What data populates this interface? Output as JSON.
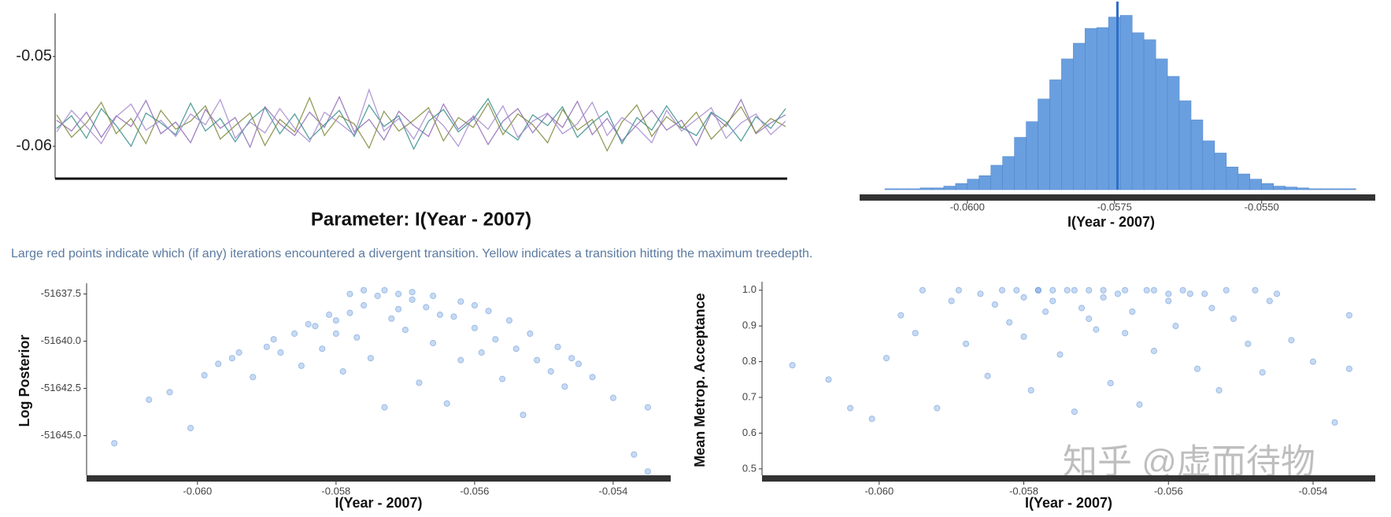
{
  "chart_data": [
    {
      "type": "line",
      "title": "Parameter: I(Year - 2007)",
      "ylim": [
        -0.0636,
        -0.0452
      ],
      "yticks": [
        -0.05,
        -0.06
      ],
      "series": [
        {
          "color": "#8e6bb5",
          "values": [
            -0.0571,
            -0.0583,
            -0.0562,
            -0.059,
            -0.0566,
            -0.0578,
            -0.0549,
            -0.0586,
            -0.0573,
            -0.0596,
            -0.0559,
            -0.058,
            -0.0568,
            -0.0601,
            -0.0556,
            -0.0575,
            -0.0588,
            -0.0562,
            -0.0579,
            -0.0545,
            -0.0584,
            -0.057,
            -0.0593,
            -0.0561,
            -0.0577,
            -0.0589,
            -0.0553,
            -0.0581,
            -0.0567,
            -0.0598,
            -0.0572,
            -0.0558,
            -0.0585,
            -0.0564,
            -0.0579,
            -0.055,
            -0.0587,
            -0.0569,
            -0.0594,
            -0.0576,
            -0.056,
            -0.0582,
            -0.0571,
            -0.0599,
            -0.0563,
            -0.0578,
            -0.0548,
            -0.0586,
            -0.0574,
            -0.0565
          ]
        },
        {
          "color": "#3a8f8c",
          "values": [
            -0.058,
            -0.0566,
            -0.0591,
            -0.0558,
            -0.0577,
            -0.06,
            -0.0563,
            -0.0574,
            -0.0587,
            -0.0552,
            -0.0583,
            -0.0569,
            -0.0595,
            -0.0571,
            -0.0557,
            -0.0586,
            -0.0564,
            -0.0592,
            -0.0576,
            -0.056,
            -0.0589,
            -0.0554,
            -0.0578,
            -0.0566,
            -0.0603,
            -0.0572,
            -0.0559,
            -0.0584,
            -0.057,
            -0.0547,
            -0.0581,
            -0.0593,
            -0.0565,
            -0.0577,
            -0.0556,
            -0.059,
            -0.0574,
            -0.0561,
            -0.0597,
            -0.0568,
            -0.0582,
            -0.0555,
            -0.0579,
            -0.0588,
            -0.0562,
            -0.0573,
            -0.0594,
            -0.0567,
            -0.058,
            -0.0558
          ]
        },
        {
          "color": "#7f8a3c",
          "values": [
            -0.0565,
            -0.059,
            -0.0574,
            -0.0551,
            -0.0586,
            -0.0569,
            -0.0597,
            -0.056,
            -0.0581,
            -0.0572,
            -0.0555,
            -0.0592,
            -0.0577,
            -0.0563,
            -0.0599,
            -0.057,
            -0.0584,
            -0.0546,
            -0.0588,
            -0.0566,
            -0.0575,
            -0.0602,
            -0.0561,
            -0.0583,
            -0.0571,
            -0.0557,
            -0.0594,
            -0.0568,
            -0.0579,
            -0.0552,
            -0.0587,
            -0.0564,
            -0.0576,
            -0.0596,
            -0.0559,
            -0.0582,
            -0.057,
            -0.0605,
            -0.0573,
            -0.0554,
            -0.0589,
            -0.0567,
            -0.058,
            -0.0562,
            -0.0592,
            -0.0575,
            -0.0556,
            -0.0585,
            -0.0569,
            -0.0578
          ]
        },
        {
          "color": "#a58ad0",
          "values": [
            -0.0584,
            -0.056,
            -0.0578,
            -0.0597,
            -0.0567,
            -0.0553,
            -0.0582,
            -0.0571,
            -0.0589,
            -0.0564,
            -0.0576,
            -0.0548,
            -0.0591,
            -0.0573,
            -0.0585,
            -0.0558,
            -0.058,
            -0.0595,
            -0.0562,
            -0.0574,
            -0.0587,
            -0.0537,
            -0.0583,
            -0.0569,
            -0.0592,
            -0.0561,
            -0.0577,
            -0.06,
            -0.0566,
            -0.0581,
            -0.0555,
            -0.059,
            -0.0572,
            -0.0563,
            -0.0586,
            -0.0575,
            -0.0551,
            -0.0588,
            -0.0568,
            -0.0579,
            -0.0596,
            -0.056,
            -0.0583,
            -0.057,
            -0.0557,
            -0.0591,
            -0.0574,
            -0.0564,
            -0.0587,
            -0.0572
          ]
        }
      ]
    },
    {
      "type": "histogram",
      "xlabel": "I(Year - 2007)",
      "color": "#6a9fdf",
      "line_color": "#2f6fc8",
      "xlim": [
        -0.06183,
        -0.05307
      ],
      "ylim": [
        0,
        205
      ],
      "xticks": [
        {
          "value": -0.06,
          "label": "-0.0600"
        },
        {
          "value": -0.0575,
          "label": "-0.0575"
        },
        {
          "value": -0.055,
          "label": "-0.0550"
        }
      ],
      "bins": [
        -0.0614,
        -0.0612,
        -0.061,
        -0.0608,
        -0.0606,
        -0.0604,
        -0.0602,
        -0.06,
        -0.0598,
        -0.0596,
        -0.0594,
        -0.0592,
        -0.059,
        -0.0588,
        -0.0586,
        -0.0584,
        -0.0582,
        -0.058,
        -0.0578,
        -0.0576,
        -0.0574,
        -0.0572,
        -0.057,
        -0.0568,
        -0.0566,
        -0.0564,
        -0.0562,
        -0.056,
        -0.0558,
        -0.0556,
        -0.0554,
        -0.0552,
        -0.055,
        -0.0548,
        -0.0546,
        -0.0544,
        -0.0542,
        -0.054,
        -0.0538,
        -0.0536,
        -0.0534
      ],
      "counts": [
        1,
        1,
        1,
        2,
        2,
        4,
        7,
        12,
        16,
        28,
        38,
        60,
        78,
        104,
        126,
        150,
        168,
        185,
        186,
        198,
        200,
        180,
        172,
        150,
        130,
        102,
        80,
        56,
        42,
        26,
        18,
        12,
        7,
        4,
        3,
        2,
        1,
        1,
        1,
        1
      ],
      "mean": -0.05745
    },
    {
      "type": "scatter",
      "xlabel": "I(Year - 2007)",
      "ylabel": "Log Posterior",
      "color": "#4a86d4",
      "xlim": [
        -0.0616,
        -0.05317
      ],
      "ylim": [
        -51647.1,
        -51637.1
      ],
      "xticks": [
        {
          "value": -0.06,
          "label": "-0.060"
        },
        {
          "value": -0.058,
          "label": "-0.058"
        },
        {
          "value": -0.056,
          "label": "-0.056"
        },
        {
          "value": -0.054,
          "label": "-0.054"
        }
      ],
      "yticks": [
        -51637.5,
        {
          "value": -51640,
          "label": "-51640.0"
        },
        -51642.5,
        {
          "value": -51645,
          "label": "-51645.0"
        }
      ],
      "x": [
        -0.0612,
        -0.0607,
        -0.0604,
        -0.0601,
        -0.0599,
        -0.0597,
        -0.0595,
        -0.0592,
        -0.059,
        -0.0588,
        -0.0586,
        -0.0585,
        -0.0583,
        -0.0582,
        -0.058,
        -0.0579,
        -0.0578,
        -0.0577,
        -0.0576,
        -0.0575,
        -0.0574,
        -0.0573,
        -0.0573,
        -0.0572,
        -0.0571,
        -0.057,
        -0.0569,
        -0.0568,
        -0.0567,
        -0.0566,
        -0.0564,
        -0.0563,
        -0.0562,
        -0.056,
        -0.0559,
        -0.0557,
        -0.0556,
        -0.0554,
        -0.0553,
        -0.0551,
        -0.0549,
        -0.0547,
        -0.0545,
        -0.0543,
        -0.054,
        -0.0537,
        -0.0535,
        -0.0535,
        -0.0594,
        -0.0589,
        -0.0584,
        -0.0581,
        -0.0569,
        -0.0566,
        -0.0562,
        -0.0558,
        -0.0555,
        -0.0552,
        -0.0548,
        -0.0546,
        -0.0578,
        -0.0576,
        -0.0571,
        -0.0565,
        -0.058,
        -0.056
      ],
      "values": [
        -51645.4,
        -51643.1,
        -51642.7,
        -51644.6,
        -51641.8,
        -51641.2,
        -51640.9,
        -51641.9,
        -51640.3,
        -51640.6,
        -51639.6,
        -51641.3,
        -51639.2,
        -51640.4,
        -51638.9,
        -51641.6,
        -51638.5,
        -51639.8,
        -51638.1,
        -51640.9,
        -51637.6,
        -51637.3,
        -51643.5,
        -51638.8,
        -51637.5,
        -51639.4,
        -51637.8,
        -51642.2,
        -51638.2,
        -51640.1,
        -51643.3,
        -51638.7,
        -51641,
        -51639.3,
        -51640.6,
        -51639.9,
        -51642,
        -51640.4,
        -51643.9,
        -51641,
        -51641.6,
        -51642.4,
        -51641.2,
        -51641.9,
        -51643,
        -51646,
        -51643.5,
        -51646.9,
        -51640.6,
        -51639.9,
        -51639.1,
        -51638.6,
        -51637.4,
        -51637.6,
        -51637.9,
        -51638.4,
        -51638.9,
        -51639.6,
        -51640.3,
        -51640.9,
        -51637.5,
        -51637.3,
        -51638.3,
        -51638.6,
        -51639.6,
        -51638.1
      ]
    },
    {
      "type": "scatter",
      "xlabel": "I(Year - 2007)",
      "ylabel": "Mean Metrop. Acceptance",
      "color": "#4a86d4",
      "xlim": [
        -0.06162,
        -0.05314
      ],
      "ylim": [
        0.482,
        1.015
      ],
      "xticks": [
        {
          "value": -0.06,
          "label": "-0.060"
        },
        {
          "value": -0.058,
          "label": "-0.058"
        },
        {
          "value": -0.056,
          "label": "-0.056"
        },
        {
          "value": -0.054,
          "label": "-0.054"
        }
      ],
      "yticks": [
        {
          "value": 1,
          "label": "1.0"
        },
        0.9,
        0.8,
        0.7,
        0.6,
        0.5
      ],
      "x": [
        -0.0612,
        -0.0607,
        -0.0604,
        -0.0601,
        -0.0599,
        -0.0597,
        -0.0595,
        -0.0592,
        -0.059,
        -0.0588,
        -0.0586,
        -0.0585,
        -0.0583,
        -0.0582,
        -0.058,
        -0.0579,
        -0.0578,
        -0.0577,
        -0.0576,
        -0.0575,
        -0.0574,
        -0.0573,
        -0.0573,
        -0.0572,
        -0.0571,
        -0.057,
        -0.0569,
        -0.0568,
        -0.0567,
        -0.0566,
        -0.0564,
        -0.0563,
        -0.0562,
        -0.056,
        -0.0559,
        -0.0557,
        -0.0556,
        -0.0554,
        -0.0553,
        -0.0551,
        -0.0549,
        -0.0547,
        -0.0545,
        -0.0543,
        -0.054,
        -0.0537,
        -0.0535,
        -0.0535,
        -0.0594,
        -0.0589,
        -0.0584,
        -0.0581,
        -0.0569,
        -0.0566,
        -0.0562,
        -0.0558,
        -0.0555,
        -0.0552,
        -0.0548,
        -0.0546,
        -0.0578,
        -0.0576,
        -0.0571,
        -0.0565,
        -0.058,
        -0.056
      ],
      "values": [
        0.79,
        0.75,
        0.67,
        0.64,
        0.81,
        0.93,
        0.88,
        0.67,
        0.97,
        0.85,
        0.99,
        0.76,
        1,
        0.91,
        0.98,
        0.72,
        1,
        0.94,
        1,
        0.82,
        1,
        1,
        0.66,
        0.95,
        1,
        0.89,
        1,
        0.74,
        0.99,
        0.88,
        0.68,
        1,
        0.83,
        0.97,
        0.9,
        0.99,
        0.78,
        0.95,
        0.72,
        0.92,
        0.85,
        0.77,
        0.99,
        0.86,
        0.8,
        0.63,
        0.93,
        0.78,
        1,
        1,
        0.96,
        1,
        0.98,
        1,
        1,
        1,
        0.99,
        1,
        1,
        0.97,
        1,
        0.97,
        0.92,
        0.94,
        0.87,
        0.99
      ]
    }
  ],
  "note": "Large red points indicate which (if any) iterations encountered a divergent transition. Yellow indicates a transition hitting the maximum treedepth.",
  "watermark": "知乎 @虚而待物"
}
